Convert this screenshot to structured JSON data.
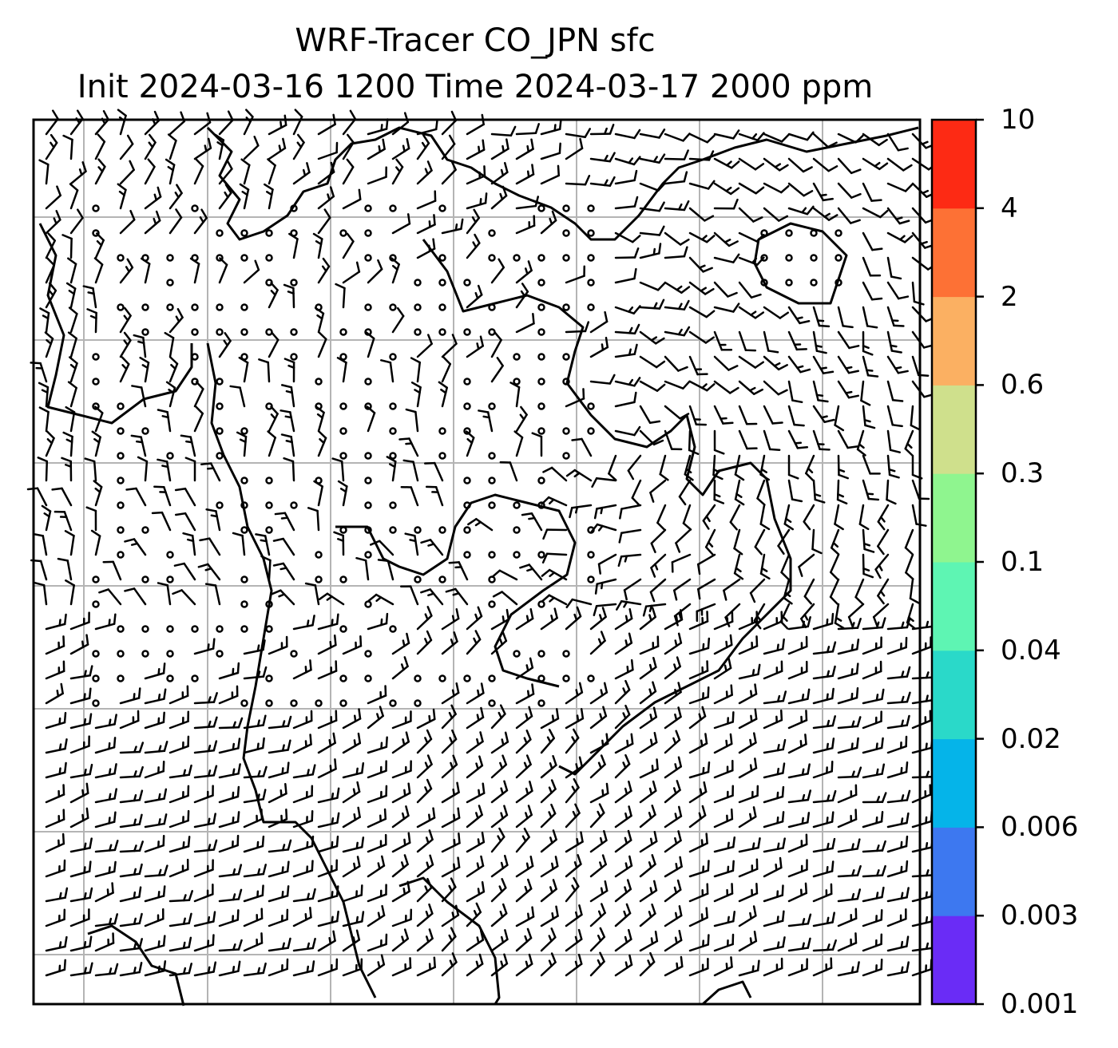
{
  "title": {
    "line1": "WRF-Tracer CO_JPN sfc",
    "line2": "Init 2024-03-16 1200 Time 2024-03-17 2000 ppm"
  },
  "colorbar": {
    "levels": [
      "0.001",
      "0.003",
      "0.006",
      "0.02",
      "0.04",
      "0.1",
      "0.3",
      "0.6",
      "2",
      "4",
      "10"
    ],
    "colors": [
      "#6a2cf6",
      "#3d78f0",
      "#05b4e9",
      "#2ad9c9",
      "#5ef5b3",
      "#8ff58f",
      "#cfe08c",
      "#fbb062",
      "#fd7135",
      "#fd2a14"
    ]
  },
  "map": {
    "gridlines": "on",
    "wind_barbs": "on",
    "coastlines": "on",
    "colors": {
      "frame": "#000000",
      "grid": "#b4b4b4",
      "coast": "#000000",
      "barb": "#000000"
    }
  }
}
